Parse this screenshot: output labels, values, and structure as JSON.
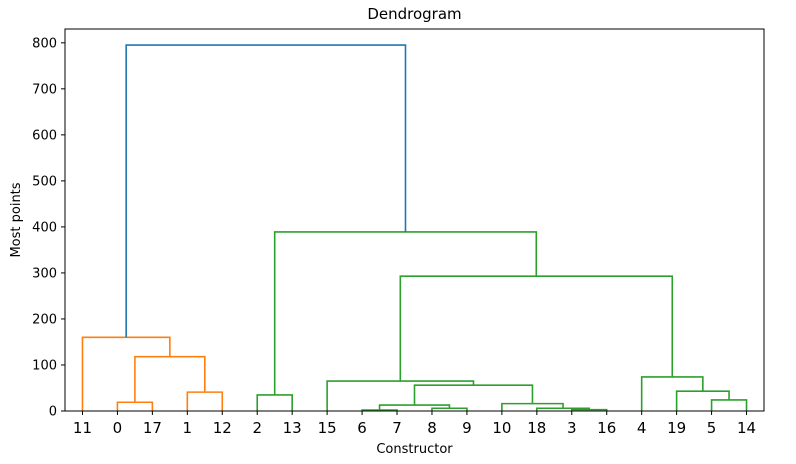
{
  "chart_data": {
    "type": "dendrogram",
    "title": "Dendrogram",
    "xlabel": "Constructor",
    "ylabel": "Most points",
    "ylim": [
      0,
      830
    ],
    "yticks": [
      0,
      100,
      200,
      300,
      400,
      500,
      600,
      700,
      800
    ],
    "leaves": [
      "11",
      "0",
      "17",
      "1",
      "12",
      "2",
      "13",
      "15",
      "6",
      "7",
      "8",
      "9",
      "10",
      "18",
      "3",
      "16",
      "4",
      "19",
      "5",
      "14"
    ],
    "colors": {
      "root": "#1f77b4",
      "cluster_1": "#ff7f0e",
      "cluster_2": "#2ca02c"
    },
    "merges": [
      {
        "left": [
          0,
          0
        ],
        "right": [
          0,
          0
        ],
        "left_pos": 1,
        "right_pos": 2,
        "height": 19,
        "color": "cluster_1"
      },
      {
        "left_pos": 3,
        "right_pos": 4,
        "height": 41,
        "color": "cluster_1"
      },
      {
        "left_pos": 1.5,
        "right_pos": 3.5,
        "height": 118,
        "color": "cluster_1"
      },
      {
        "left_pos": 0,
        "right_pos": 2.5,
        "height": 160,
        "color": "cluster_1"
      },
      {
        "left_pos": 5,
        "right_pos": 6,
        "height": 35,
        "color": "cluster_2"
      },
      {
        "left_pos": 8,
        "right_pos": 9,
        "height": 2,
        "color": "cluster_2"
      },
      {
        "left_pos": 10,
        "right_pos": 11,
        "height": 6,
        "color": "cluster_2"
      },
      {
        "left_pos": 8.5,
        "right_pos": 10.5,
        "height": 13,
        "color": "cluster_2"
      },
      {
        "left_pos": 14,
        "right_pos": 15,
        "height": 3,
        "color": "cluster_2"
      },
      {
        "left_pos": 13,
        "right_pos": 14.5,
        "height": 6,
        "color": "cluster_2"
      },
      {
        "left_pos": 12,
        "right_pos": 13.75,
        "height": 16,
        "color": "cluster_2"
      },
      {
        "left_pos": 9.5,
        "right_pos": 12.875,
        "height": 56,
        "color": "cluster_2"
      },
      {
        "left_pos": 7,
        "right_pos": 11.1875,
        "height": 65,
        "color": "cluster_2"
      },
      {
        "left_pos": 18,
        "right_pos": 19,
        "height": 24,
        "color": "cluster_2"
      },
      {
        "left_pos": 17,
        "right_pos": 18.5,
        "height": 43,
        "color": "cluster_2"
      },
      {
        "left_pos": 16,
        "right_pos": 17.75,
        "height": 74,
        "color": "cluster_2"
      },
      {
        "left_pos": 9.09375,
        "right_pos": 16.875,
        "height": 293,
        "color": "cluster_2"
      },
      {
        "left_pos": 5.5,
        "right_pos": 12.984375,
        "height": 389,
        "color": "cluster_2"
      },
      {
        "left_pos": 1.25,
        "right_pos": 9.2421875,
        "height": 795,
        "color": "root"
      }
    ]
  }
}
